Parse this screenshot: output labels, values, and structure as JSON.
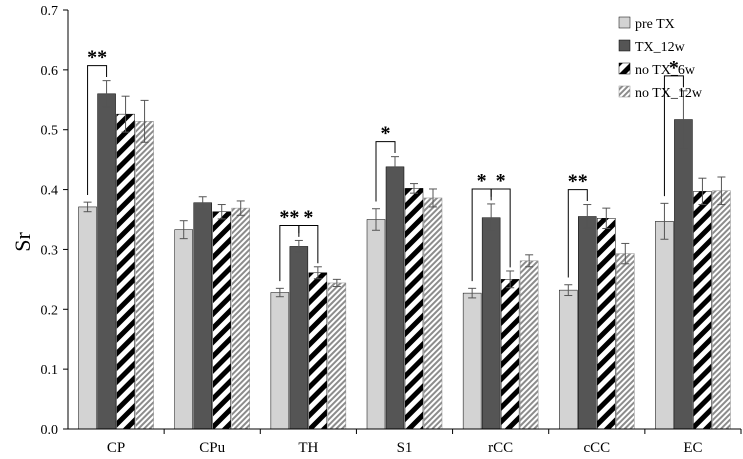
{
  "chart_data": {
    "type": "bar",
    "title": "",
    "xlabel": "",
    "ylabel": "Sr",
    "ylim": [
      0,
      0.7
    ],
    "yticks": [
      "0.0",
      "0.1",
      "0.2",
      "0.3",
      "0.4",
      "0.5",
      "0.6",
      "0.7"
    ],
    "grid": false,
    "legend_position": "top-right",
    "categories": [
      "CP",
      "CPu",
      "TH",
      "S1",
      "rCC",
      "cCC",
      "EC"
    ],
    "series": [
      {
        "name": "pre TX",
        "color": "#d3d3d3",
        "pattern": "solid",
        "values": [
          0.371,
          0.333,
          0.228,
          0.35,
          0.227,
          0.232,
          0.347
        ],
        "errors": [
          0.008,
          0.015,
          0.007,
          0.018,
          0.008,
          0.009,
          0.03
        ]
      },
      {
        "name": "TX_12w",
        "color": "#555555",
        "pattern": "solid",
        "values": [
          0.56,
          0.378,
          0.305,
          0.438,
          0.353,
          0.355,
          0.517
        ],
        "errors": [
          0.022,
          0.01,
          0.01,
          0.017,
          0.023,
          0.02,
          0.048
        ]
      },
      {
        "name": "no TX_6w",
        "color": "#000000",
        "pattern": "bold-diagonal",
        "values": [
          0.526,
          0.363,
          0.261,
          0.402,
          0.25,
          0.352,
          0.397
        ],
        "errors": [
          0.03,
          0.012,
          0.01,
          0.008,
          0.014,
          0.017,
          0.022
        ]
      },
      {
        "name": "no TX_12w",
        "color": "#999999",
        "pattern": "fine-diagonal",
        "values": [
          0.514,
          0.369,
          0.244,
          0.386,
          0.281,
          0.293,
          0.398
        ],
        "errors": [
          0.035,
          0.012,
          0.006,
          0.015,
          0.01,
          0.017,
          0.023
        ]
      }
    ],
    "significance": [
      {
        "category": "CP",
        "from_series": 0,
        "to_series": 1,
        "label": "**"
      },
      {
        "category": "TH",
        "from_series": 0,
        "to_series": 1,
        "label": "**"
      },
      {
        "category": "TH",
        "from_series": 1,
        "to_series": 2,
        "label": "*"
      },
      {
        "category": "S1",
        "from_series": 0,
        "to_series": 1,
        "label": "*"
      },
      {
        "category": "rCC",
        "from_series": 0,
        "to_series": 1,
        "label": "*"
      },
      {
        "category": "rCC",
        "from_series": 1,
        "to_series": 2,
        "label": "*"
      },
      {
        "category": "cCC",
        "from_series": 0,
        "to_series": 1,
        "label": "**"
      },
      {
        "category": "EC",
        "from_series": 0,
        "to_series": 1,
        "label": "*"
      }
    ]
  }
}
